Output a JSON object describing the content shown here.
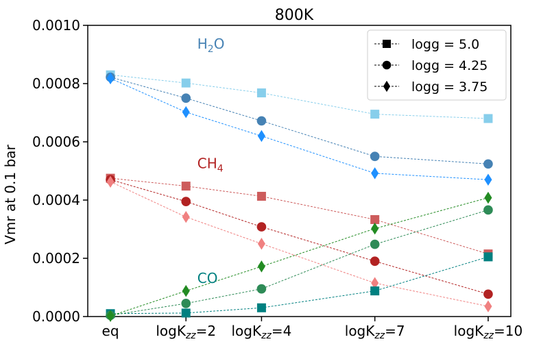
{
  "chart_data": {
    "type": "line",
    "title": "800K",
    "xlabel": "",
    "ylabel": "Vmr at 0.1 bar",
    "ylim": [
      0,
      0.001
    ],
    "yticks": [
      "0.0000",
      "0.0002",
      "0.0004",
      "0.0006",
      "0.0008",
      "0.0010"
    ],
    "ytick_values": [
      0,
      0.0002,
      0.0004,
      0.0006,
      0.0008,
      0.001
    ],
    "x_positions": [
      0,
      2,
      4,
      7,
      10
    ],
    "x_ticks": [
      {
        "pre": "eq",
        "sub": "",
        "post": ""
      },
      {
        "pre": "logK",
        "sub": "zz",
        "post": "=2"
      },
      {
        "pre": "logK",
        "sub": "zz",
        "post": "=4"
      },
      {
        "pre": "logK",
        "sub": "zz",
        "post": "=7"
      },
      {
        "pre": "logK",
        "sub": "zz",
        "post": "=10"
      }
    ],
    "legend": {
      "placement": "upper right",
      "entries": [
        {
          "label": "logg = 5.0",
          "marker": "square"
        },
        {
          "label": "logg = 4.25",
          "marker": "circle"
        },
        {
          "label": "logg = 3.75",
          "marker": "diamond"
        }
      ]
    },
    "annotations": [
      {
        "pre": "H",
        "sub": "2",
        "post": "O",
        "color": "#4682b4",
        "x": 2.3,
        "y": 0.00092
      },
      {
        "pre": "CH",
        "sub": "4",
        "post": "",
        "color": "#b22222",
        "x": 2.3,
        "y": 0.00051
      },
      {
        "pre": "CO",
        "sub": "",
        "post": "",
        "color": "#008080",
        "x": 2.3,
        "y": 0.000115
      }
    ],
    "series": [
      {
        "species": "H2O",
        "logg": "5.0",
        "marker": "square",
        "color": "#87ceeb",
        "values": [
          0.00083,
          0.000802,
          0.000768,
          0.000695,
          0.00068
        ]
      },
      {
        "species": "H2O",
        "logg": "4.25",
        "marker": "circle",
        "color": "#4682b4",
        "values": [
          0.000822,
          0.00075,
          0.000672,
          0.00055,
          0.000524
        ]
      },
      {
        "species": "H2O",
        "logg": "3.75",
        "marker": "diamond",
        "color": "#1e90ff",
        "values": [
          0.000818,
          0.000702,
          0.00062,
          0.000492,
          0.00047
        ]
      },
      {
        "species": "CH4",
        "logg": "5.0",
        "marker": "square",
        "color": "#cd5c5c",
        "values": [
          0.000475,
          0.000448,
          0.000413,
          0.000333,
          0.000215
        ]
      },
      {
        "species": "CH4",
        "logg": "4.25",
        "marker": "circle",
        "color": "#b22222",
        "values": [
          0.00047,
          0.000395,
          0.000308,
          0.00019,
          7.7e-05
        ]
      },
      {
        "species": "CH4",
        "logg": "3.75",
        "marker": "diamond",
        "color": "#f08080",
        "values": [
          0.000463,
          0.000342,
          0.00025,
          0.000115,
          3.5e-05
        ]
      },
      {
        "species": "CO",
        "logg": "5.0",
        "marker": "square",
        "color": "#008080",
        "values": [
          1e-05,
          1.2e-05,
          3e-05,
          8.8e-05,
          0.000205
        ]
      },
      {
        "species": "CO",
        "logg": "4.25",
        "marker": "circle",
        "color": "#2e8b57",
        "values": [
          4e-06,
          4.5e-05,
          9.5e-05,
          0.000248,
          0.000366
        ]
      },
      {
        "species": "CO",
        "logg": "3.75",
        "marker": "diamond",
        "color": "#228b22",
        "values": [
          2e-06,
          8.8e-05,
          0.000172,
          0.000302,
          0.000408
        ]
      }
    ]
  }
}
